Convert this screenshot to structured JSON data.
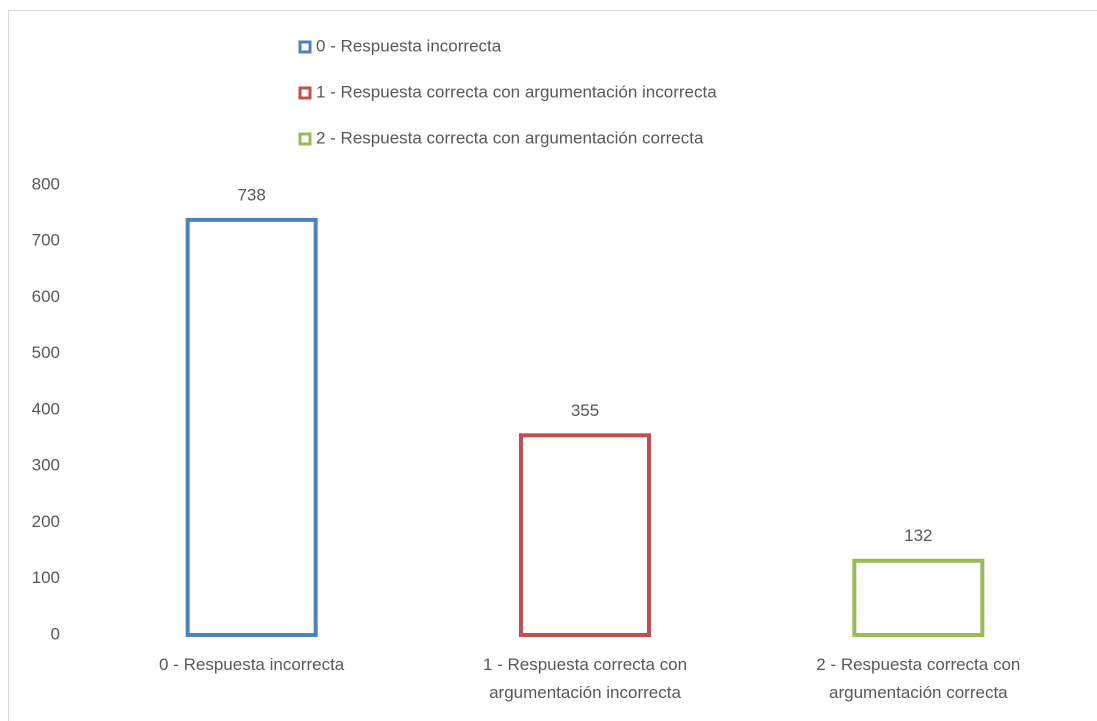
{
  "chart_data": {
    "type": "bar",
    "categories": [
      "0 - Respuesta incorrecta",
      "1 - Respuesta correcta con argumentación incorrecta",
      "2 - Respuesta correcta con argumentación correcta"
    ],
    "values": [
      738,
      355,
      132
    ],
    "colors": [
      "#4f81bd",
      "#c0504d",
      "#9bbb59"
    ],
    "ylim": [
      0,
      800
    ],
    "yticks": [
      0,
      100,
      200,
      300,
      400,
      500,
      600,
      700,
      800
    ],
    "grid": false,
    "legend": "top",
    "bar_style": "outline"
  }
}
